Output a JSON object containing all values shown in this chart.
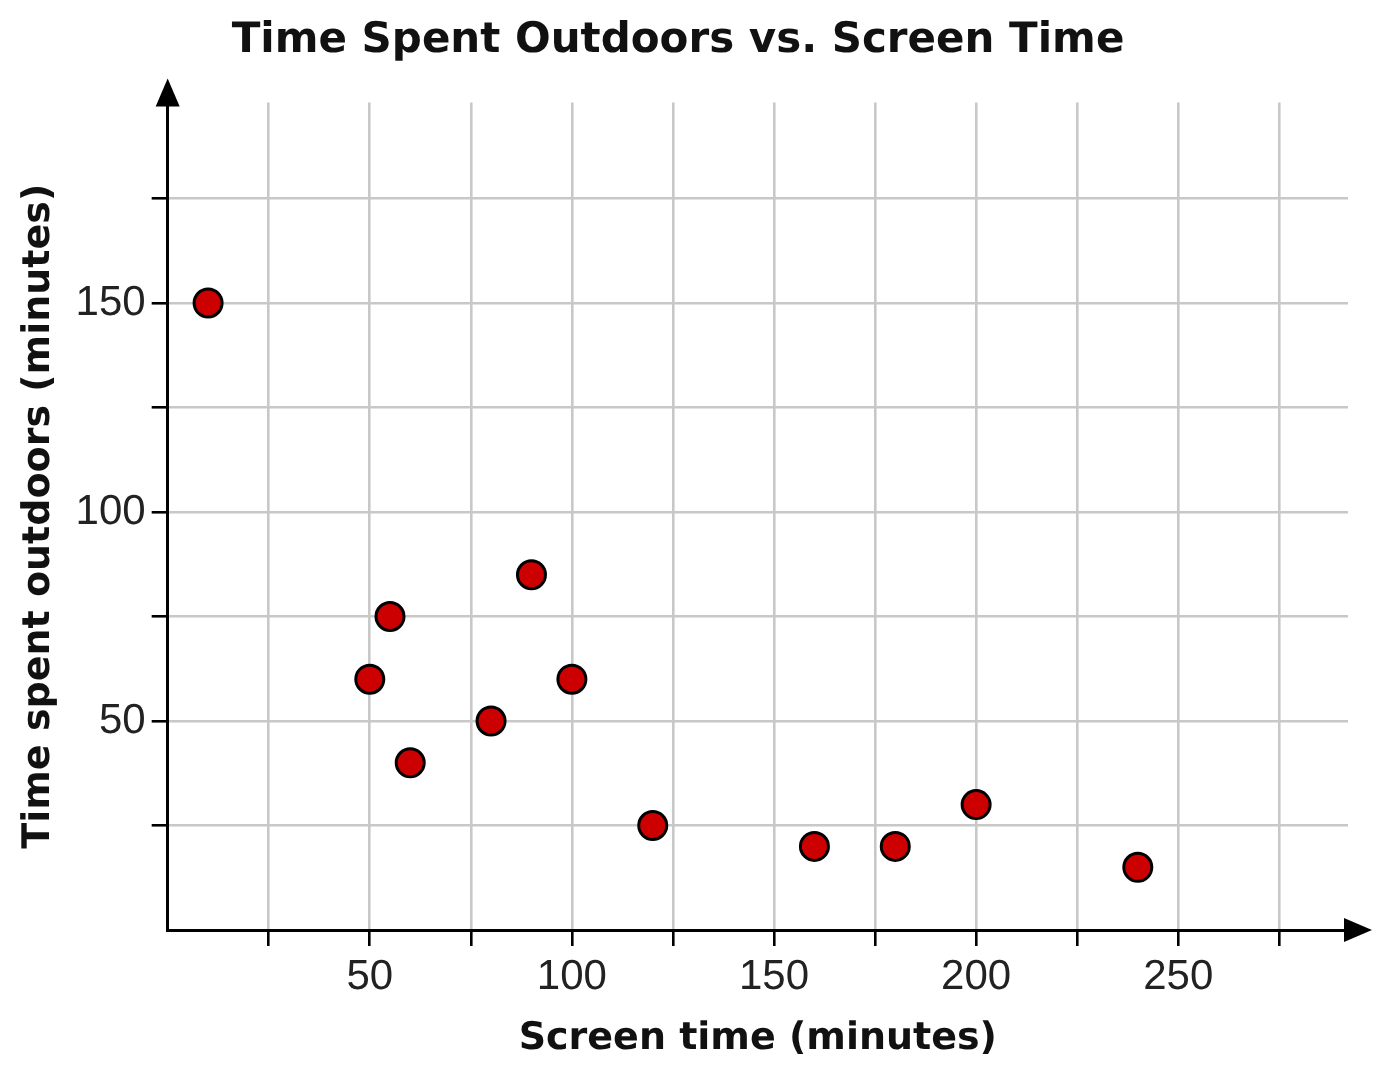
{
  "chart_data": {
    "type": "scatter",
    "title": "Time Spent Outdoors vs. Screen Time",
    "xlabel": "Screen time (minutes)",
    "ylabel": "Time spent outdoors (minutes)",
    "x": [
      10,
      50,
      55,
      60,
      80,
      90,
      100,
      120,
      160,
      180,
      200,
      240
    ],
    "values": [
      150,
      60,
      75,
      40,
      50,
      85,
      60,
      25,
      20,
      20,
      30,
      15
    ],
    "color": "#cc0000",
    "marker": "circle",
    "xlim": [
      0,
      292
    ],
    "ylim": [
      0,
      198
    ],
    "xticks": [
      {
        "value": 25,
        "label": null
      },
      50,
      {
        "value": 75,
        "label": null
      },
      100,
      {
        "value": 125,
        "label": null
      },
      150,
      {
        "value": 175,
        "label": null
      },
      200,
      {
        "value": 225,
        "label": null
      },
      250,
      {
        "value": 275,
        "label": null
      }
    ],
    "yticks": [
      {
        "value": 25,
        "label": null
      },
      50,
      {
        "value": 75,
        "label": null
      },
      100,
      {
        "value": 125,
        "label": null
      },
      150,
      {
        "value": 175,
        "label": null
      }
    ],
    "grid": true,
    "legend": false
  }
}
